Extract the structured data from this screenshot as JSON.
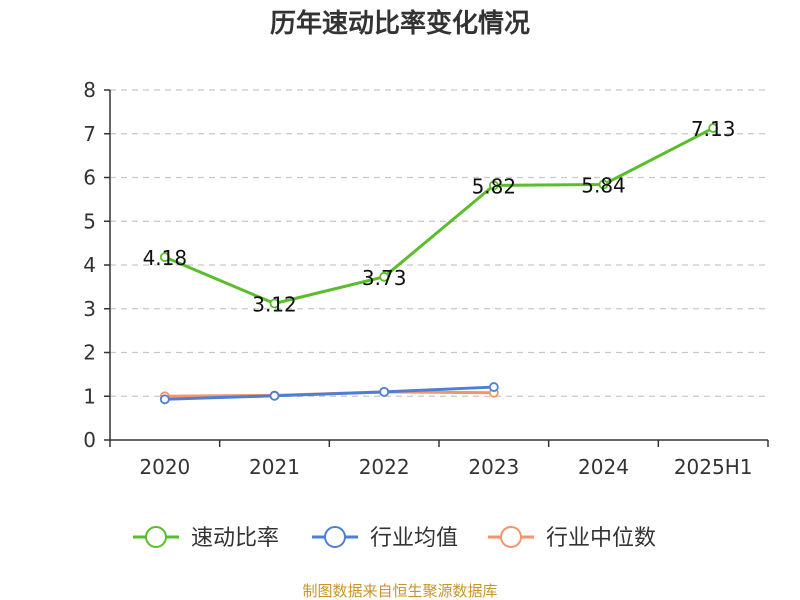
{
  "chart_data": {
    "type": "line",
    "title": "历年速动比率变化情况",
    "categories": [
      "2020",
      "2021",
      "2022",
      "2023",
      "2024",
      "2025H1"
    ],
    "ylim": [
      0,
      8
    ],
    "yticks": [
      "0",
      "1",
      "2",
      "3",
      "4",
      "5",
      "6",
      "7",
      "8"
    ],
    "grid": true,
    "legend_position": "bottom",
    "series": [
      {
        "name": "速动比率",
        "color": "#5bbd2b",
        "values": [
          4.18,
          3.12,
          3.73,
          5.82,
          5.84,
          7.13
        ],
        "labels": [
          "4.18",
          "3.12",
          "3.73",
          "5.82",
          "5.84",
          "7.13"
        ]
      },
      {
        "name": "行业均值",
        "color": "#4e7fd6",
        "values": [
          0.93,
          1.01,
          1.1,
          1.21,
          null,
          null
        ],
        "labels": []
      },
      {
        "name": "行业中位数",
        "color": "#f4946a",
        "values": [
          1.0,
          1.02,
          1.1,
          1.08,
          null,
          null
        ],
        "labels": []
      }
    ],
    "source": "制图数据来自恒生聚源数据库"
  }
}
